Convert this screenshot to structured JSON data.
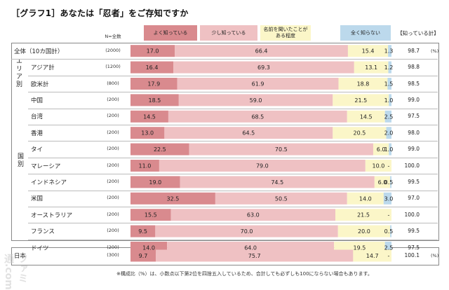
{
  "title": "［グラフ1］あなたは「忍者」をご存知ですか",
  "n_header": "N=全数",
  "total_header": "【知っている計】",
  "pct_unit": "(%)",
  "footnote": "※構成比（%）は、小数点以下第2位を四捨五入しているため、合計しても必ずしも100にならない場合もあります。",
  "watermark": "ファミ通.com",
  "groups": {
    "area": "エリア別",
    "country": "国別"
  },
  "colors": {
    "very_well": "#d98a8e",
    "a_little": "#efc1c3",
    "heard": "#fbf6c8",
    "not_at_all": "#bcd9ec"
  },
  "chart_data": {
    "type": "bar",
    "stacked": true,
    "orientation": "horizontal",
    "title": "［グラフ1］あなたは「忍者」をご存知ですか",
    "series": [
      {
        "name": "よく知っている",
        "values": [
          17.0,
          16.4,
          17.9,
          18.5,
          14.5,
          13.0,
          22.5,
          11.0,
          19.0,
          32.5,
          15.5,
          9.5,
          14.0,
          9.7
        ]
      },
      {
        "name": "少し知っている",
        "values": [
          66.4,
          69.3,
          61.9,
          59.0,
          68.5,
          64.5,
          70.5,
          79.0,
          74.5,
          50.5,
          63.0,
          70.0,
          64.0,
          75.7
        ]
      },
      {
        "name": "名前を聞いたことがある程度",
        "values": [
          15.4,
          13.1,
          18.8,
          21.5,
          14.5,
          20.5,
          6.0,
          10.0,
          6.0,
          14.0,
          21.5,
          20.0,
          19.5,
          14.7
        ]
      },
      {
        "name": "全く知らない",
        "values": [
          1.3,
          1.2,
          1.5,
          1.0,
          2.5,
          2.0,
          1.0,
          0,
          0.5,
          3.0,
          0,
          0.5,
          2.5,
          0
        ]
      }
    ],
    "categories": [
      "全体（10カ国計）",
      "アジア計",
      "欧米計",
      "中国",
      "台湾",
      "香港",
      "タイ",
      "マレーシア",
      "インドネシア",
      "米国",
      "オーストラリア",
      "フランス",
      "ドイツ",
      "日本"
    ],
    "value_labels": [
      [
        "17.0",
        "66.4",
        "15.4",
        "1.3"
      ],
      [
        "16.4",
        "69.3",
        "13.1",
        "1.2"
      ],
      [
        "17.9",
        "61.9",
        "18.8",
        "1.5"
      ],
      [
        "18.5",
        "59.0",
        "21.5",
        "1.0"
      ],
      [
        "14.5",
        "68.5",
        "14.5",
        "2.5"
      ],
      [
        "13.0",
        "64.5",
        "20.5",
        "2.0"
      ],
      [
        "22.5",
        "70.5",
        "6.0",
        "1.0"
      ],
      [
        "11.0",
        "79.0",
        "10.0",
        "-"
      ],
      [
        "19.0",
        "74.5",
        "6.0",
        "0.5"
      ],
      [
        "32.5",
        "50.5",
        "14.0",
        "3.0"
      ],
      [
        "15.5",
        "63.0",
        "21.5",
        "-"
      ],
      [
        "9.5",
        "70.0",
        "20.0",
        "0.5"
      ],
      [
        "14.0",
        "64.0",
        "19.5",
        "2.5"
      ],
      [
        "9.7",
        "75.7",
        "14.7",
        "-"
      ]
    ],
    "n": [
      "(2000)",
      "(1200)",
      "(800)",
      "(200)",
      "(200)",
      "(200)",
      "(200)",
      "(200)",
      "(200)",
      "(200)",
      "(200)",
      "(200)",
      "(200)",
      "(300)"
    ],
    "known_total": [
      "98.7",
      "98.8",
      "98.5",
      "99.0",
      "97.5",
      "98.0",
      "99.0",
      "100.0",
      "99.5",
      "97.0",
      "100.0",
      "99.5",
      "97.5",
      "100.1"
    ],
    "xlim": [
      0,
      100
    ],
    "legend_position": "top"
  }
}
